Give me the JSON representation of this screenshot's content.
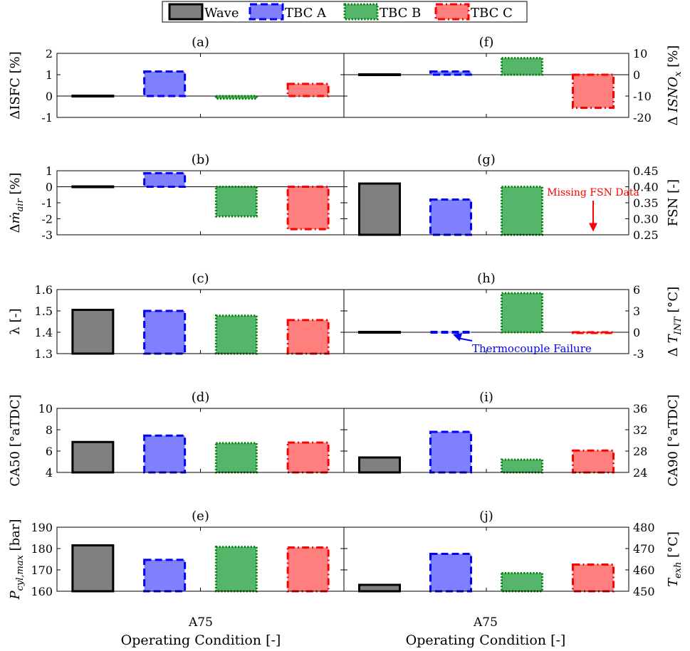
{
  "legend": {
    "placement": "top-center",
    "entries": [
      {
        "label": "Wave",
        "fill": "#808080",
        "edge": "#000000",
        "dash": "solid"
      },
      {
        "label": "TBC A",
        "fill": "#8080ff",
        "edge": "#0000ff",
        "dash": "dashed"
      },
      {
        "label": "TBC B",
        "fill": "#55b56a",
        "edge": "#008000",
        "dash": "dotted"
      },
      {
        "label": "TBC C",
        "fill": "#ff7f7f",
        "edge": "#ff0000",
        "dash": "dashdot"
      }
    ]
  },
  "xlabel": "Operating Condition [-]",
  "xtick": "A75",
  "chart_data": [
    {
      "id": "a",
      "panel": "(a)",
      "type": "bar",
      "side": "left",
      "ylabel": "ΔISFC [%]",
      "ylim": [
        -1,
        2
      ],
      "ticks": [
        -1,
        0,
        1,
        2
      ],
      "tick_labels": [
        "-1",
        "0",
        "1",
        "2"
      ],
      "zero_line": true,
      "categories": [
        "Wave",
        "TBC A",
        "TBC B",
        "TBC C"
      ],
      "values": [
        0,
        1.15,
        -0.12,
        0.57
      ]
    },
    {
      "id": "f",
      "panel": "(f)",
      "type": "bar",
      "side": "right",
      "ylabel": "Δ ISNOx [%]",
      "ylim": [
        -20,
        10
      ],
      "ticks": [
        -20,
        -10,
        0,
        10
      ],
      "tick_labels": [
        "-20",
        "-10",
        "0",
        "10"
      ],
      "zero_line": true,
      "categories": [
        "Wave",
        "TBC A",
        "TBC B",
        "TBC C"
      ],
      "values": [
        0,
        1.5,
        7.8,
        -15.5
      ]
    },
    {
      "id": "b",
      "panel": "(b)",
      "type": "bar",
      "side": "left",
      "ylabel": "Δṁair [%]",
      "ylim": [
        -3,
        1
      ],
      "ticks": [
        -3,
        -2,
        -1,
        0,
        1
      ],
      "tick_labels": [
        "-3",
        "-2",
        "-1",
        "0",
        "1"
      ],
      "zero_line": true,
      "categories": [
        "Wave",
        "TBC A",
        "TBC B",
        "TBC C"
      ],
      "values": [
        0,
        0.85,
        -1.85,
        -2.65
      ]
    },
    {
      "id": "g",
      "panel": "(g)",
      "type": "bar",
      "side": "right",
      "ylabel": "FSN [-]",
      "ylim": [
        0.25,
        0.45
      ],
      "ticks": [
        0.25,
        0.3,
        0.35,
        0.4,
        0.45
      ],
      "tick_labels": [
        "0.25",
        "0.30",
        "0.35",
        "0.40",
        "0.45"
      ],
      "zero_line": false,
      "categories": [
        "Wave",
        "TBC A",
        "TBC B",
        "TBC C"
      ],
      "values": [
        0.41,
        0.36,
        0.4,
        null
      ],
      "annotation": {
        "text": "Missing FSN Data",
        "color": "#ff0000",
        "target_category": "TBC C",
        "target_value": 0.26
      }
    },
    {
      "id": "c",
      "panel": "(c)",
      "type": "bar",
      "side": "left",
      "ylabel": "λ [-]",
      "ylim": [
        1.3,
        1.6
      ],
      "ticks": [
        1.3,
        1.4,
        1.5,
        1.6
      ],
      "tick_labels": [
        "1.3",
        "1.4",
        "1.5",
        "1.6"
      ],
      "zero_line": false,
      "categories": [
        "Wave",
        "TBC A",
        "TBC B",
        "TBC C"
      ],
      "values": [
        1.505,
        1.5,
        1.478,
        1.457
      ]
    },
    {
      "id": "h",
      "panel": "(h)",
      "type": "bar",
      "side": "right",
      "ylabel": "Δ TINT [°C]",
      "ylim": [
        -3,
        6
      ],
      "ticks": [
        -3,
        0,
        3,
        6
      ],
      "tick_labels": [
        "-3",
        "0",
        "3",
        "6"
      ],
      "zero_line": true,
      "categories": [
        "Wave",
        "TBC A",
        "TBC B",
        "TBC C"
      ],
      "values": [
        0,
        0,
        5.5,
        -0.1
      ],
      "annotation": {
        "text": "Thermocouple Failure",
        "color": "#0000ff",
        "target_category": "TBC A",
        "target_value": -0.2
      }
    },
    {
      "id": "d",
      "panel": "(d)",
      "type": "bar",
      "side": "left",
      "ylabel": "CA50 [°aTDC]",
      "ylim": [
        4,
        10
      ],
      "ticks": [
        4,
        6,
        8,
        10
      ],
      "tick_labels": [
        "4",
        "6",
        "8",
        "10"
      ],
      "zero_line": false,
      "categories": [
        "Wave",
        "TBC A",
        "TBC B",
        "TBC C"
      ],
      "values": [
        6.85,
        7.45,
        6.75,
        6.8
      ]
    },
    {
      "id": "i",
      "panel": "(i)",
      "type": "bar",
      "side": "right",
      "ylabel": "CA90 [°aTDC]",
      "ylim": [
        24,
        36
      ],
      "ticks": [
        24,
        28,
        32,
        36
      ],
      "tick_labels": [
        "24",
        "28",
        "32",
        "36"
      ],
      "zero_line": false,
      "categories": [
        "Wave",
        "TBC A",
        "TBC B",
        "TBC C"
      ],
      "values": [
        26.8,
        31.6,
        26.4,
        28.1
      ]
    },
    {
      "id": "e",
      "panel": "(e)",
      "type": "bar",
      "side": "left",
      "ylabel": "Pcyl,max [bar]",
      "ylim": [
        160,
        190
      ],
      "ticks": [
        160,
        170,
        180,
        190
      ],
      "tick_labels": [
        "160",
        "170",
        "180",
        "190"
      ],
      "zero_line": false,
      "categories": [
        "Wave",
        "TBC A",
        "TBC B",
        "TBC C"
      ],
      "values": [
        181.5,
        174.7,
        180.8,
        180.5
      ]
    },
    {
      "id": "j",
      "panel": "(j)",
      "type": "bar",
      "side": "right",
      "ylabel": "Texh [°C]",
      "ylim": [
        450,
        480
      ],
      "ticks": [
        450,
        460,
        470,
        480
      ],
      "tick_labels": [
        "450",
        "460",
        "470",
        "480"
      ],
      "zero_line": false,
      "categories": [
        "Wave",
        "TBC A",
        "TBC B",
        "TBC C"
      ],
      "values": [
        453,
        467.5,
        458.5,
        462.5
      ]
    }
  ]
}
